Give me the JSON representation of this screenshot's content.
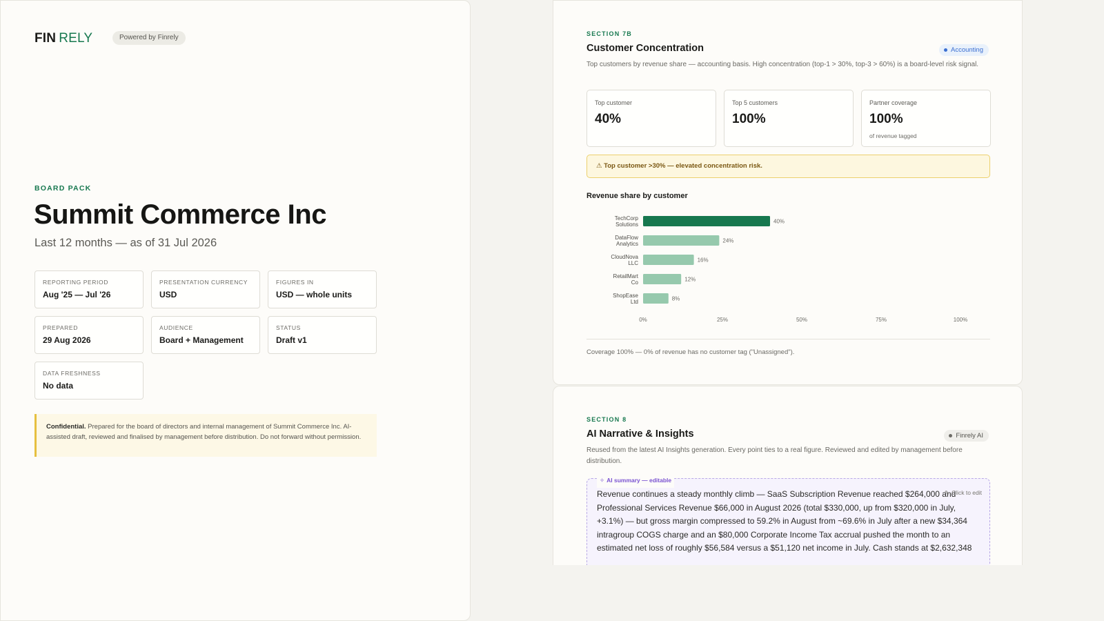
{
  "cover": {
    "brand_part1": "FIN",
    "brand_part2": "RELY",
    "powered_by": "Powered by Finrely",
    "eyebrow": "BOARD PACK",
    "title": "Summit Commerce Inc",
    "subtitle": "Last 12 months — as of 31 Jul 2026",
    "meta": [
      {
        "label": "REPORTING PERIOD",
        "value": "Aug '25 — Jul '26"
      },
      {
        "label": "PRESENTATION CURRENCY",
        "value": "USD"
      },
      {
        "label": "FIGURES IN",
        "value": "USD — whole units"
      },
      {
        "label": "PREPARED",
        "value": "29 Aug 2026"
      },
      {
        "label": "AUDIENCE",
        "value": "Board + Management"
      },
      {
        "label": "STATUS",
        "value": "Draft v1"
      },
      {
        "label": "DATA FRESHNESS",
        "value": "No data"
      }
    ],
    "confidential_lead": "Confidential.",
    "confidential_text": "Prepared for the board of directors and internal management of Summit Commerce Inc. AI-assisted draft, reviewed and finalised by management before distribution. Do not forward without permission."
  },
  "section7b": {
    "eyebrow": "SECTION 7B",
    "title": "Customer Concentration",
    "badge": "Accounting",
    "description": "Top customers by revenue share — accounting basis. High concentration (top-1 > 30%, top-3 > 60%) is a board-level risk signal.",
    "kpis": [
      {
        "label": "Top customer",
        "value": "40%",
        "note": ""
      },
      {
        "label": "Top 5 customers",
        "value": "100%",
        "note": ""
      },
      {
        "label": "Partner coverage",
        "value": "100%",
        "note": "of revenue tagged"
      }
    ],
    "warning": "⚠ Top customer >30% — elevated concentration risk.",
    "chart_title": "Revenue share by customer",
    "coverage_note": "Coverage 100% — 0% of revenue has no customer tag (\"Unassigned\")."
  },
  "chart_data": {
    "type": "bar",
    "orientation": "horizontal",
    "title": "Revenue share by customer",
    "categories": [
      [
        "TechCorp",
        "Solutions"
      ],
      [
        "DataFlow",
        "Analytics"
      ],
      [
        "CloudNova",
        "LLC"
      ],
      [
        "RetailMart",
        "Co"
      ],
      [
        "ShopEase",
        "Ltd"
      ]
    ],
    "values": [
      40,
      24,
      16,
      12,
      8
    ],
    "value_labels": [
      "40%",
      "24%",
      "16%",
      "12%",
      "8%"
    ],
    "xlim": [
      0,
      100
    ],
    "xticks": [
      0,
      25,
      50,
      75,
      100
    ],
    "xtick_labels": [
      "0%",
      "25%",
      "50%",
      "75%",
      "100%"
    ],
    "colors": {
      "top": "#17784f",
      "rest": "#96c9ad"
    },
    "grid": false
  },
  "section8": {
    "eyebrow": "SECTION 8",
    "title": "AI Narrative & Insights",
    "badge": "Finrely AI",
    "description": "Reused from the latest AI Insights generation. Every point ties to a real figure. Reviewed and edited by management before distribution.",
    "ai_tag": "AI summary — editable",
    "click_to_edit": "Click to edit",
    "summary": "Revenue continues a steady monthly climb — SaaS Subscription Revenue reached $264,000 and Professional Services Revenue $66,000 in August 2026 (total $330,000, up from $320,000 in July, +3.1%) — but gross margin compressed to 59.2% in August from ~69.6% in July after a new $34,364 intragroup COGS charge and an $80,000 Corporate Income Tax accrual pushed the month to an estimated net loss of roughly $56,584 versus a $51,120 net income in July. Cash stands at $2,632,348"
  },
  "colors": {
    "accent_green": "#17784f",
    "warning_bg": "#fdf7df",
    "ai_purple": "#7a52d1",
    "badge_blue": "#3b6fd1"
  }
}
